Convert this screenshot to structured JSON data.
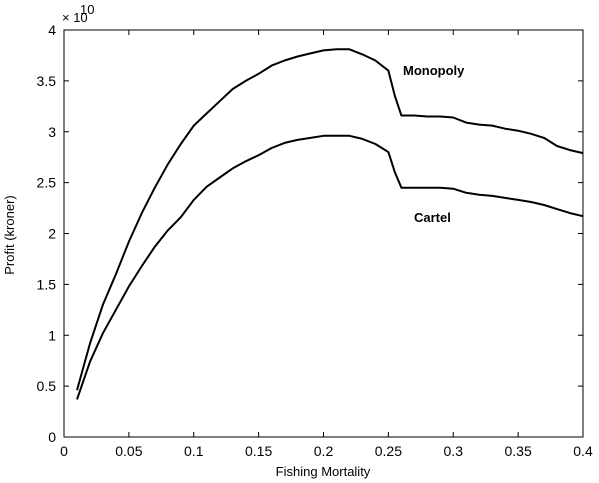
{
  "chart_data": {
    "type": "line",
    "title": "",
    "xlabel": "Fishing Mortality",
    "ylabel": "Profit (kroner)",
    "y_multiplier_label": "× 10",
    "y_multiplier_exponent": "10",
    "xlim": [
      0,
      0.4
    ],
    "ylim": [
      0,
      4
    ],
    "grid": false,
    "x_ticks": [
      0,
      0.05,
      0.1,
      0.15,
      0.2,
      0.25,
      0.3,
      0.35,
      0.4
    ],
    "x_tick_labels": [
      "0",
      "0.05",
      "0.1",
      "0.15",
      "0.2",
      "0.25",
      "0.3",
      "0.35",
      "0.4"
    ],
    "y_ticks": [
      0,
      0.5,
      1,
      1.5,
      2,
      2.5,
      3,
      3.5,
      4
    ],
    "y_tick_labels": [
      "0",
      "0.5",
      "1",
      "1.5",
      "2",
      "2.5",
      "3",
      "3.5",
      "4"
    ],
    "series": [
      {
        "name": "Monopoly",
        "color": "#000000",
        "x": [
          0.01,
          0.02,
          0.03,
          0.04,
          0.05,
          0.06,
          0.07,
          0.08,
          0.09,
          0.1,
          0.11,
          0.12,
          0.13,
          0.14,
          0.15,
          0.16,
          0.17,
          0.18,
          0.19,
          0.2,
          0.21,
          0.22,
          0.23,
          0.24,
          0.25,
          0.255,
          0.26,
          0.27,
          0.28,
          0.29,
          0.3,
          0.31,
          0.32,
          0.33,
          0.34,
          0.35,
          0.36,
          0.37,
          0.38,
          0.39,
          0.4
        ],
        "values": [
          0.46,
          0.92,
          1.3,
          1.6,
          1.92,
          2.2,
          2.45,
          2.68,
          2.88,
          3.06,
          3.18,
          3.3,
          3.42,
          3.5,
          3.57,
          3.65,
          3.7,
          3.74,
          3.77,
          3.8,
          3.81,
          3.81,
          3.76,
          3.7,
          3.6,
          3.35,
          3.16,
          3.16,
          3.15,
          3.15,
          3.14,
          3.09,
          3.07,
          3.06,
          3.03,
          3.01,
          2.98,
          2.94,
          2.86,
          2.82,
          2.79
        ]
      },
      {
        "name": "Cartel",
        "color": "#000000",
        "x": [
          0.01,
          0.02,
          0.03,
          0.04,
          0.05,
          0.06,
          0.07,
          0.08,
          0.09,
          0.1,
          0.11,
          0.12,
          0.13,
          0.14,
          0.15,
          0.16,
          0.17,
          0.18,
          0.19,
          0.2,
          0.21,
          0.22,
          0.23,
          0.24,
          0.25,
          0.255,
          0.26,
          0.27,
          0.28,
          0.29,
          0.3,
          0.31,
          0.32,
          0.33,
          0.34,
          0.35,
          0.36,
          0.37,
          0.38,
          0.39,
          0.4
        ],
        "values": [
          0.37,
          0.74,
          1.02,
          1.25,
          1.48,
          1.68,
          1.87,
          2.03,
          2.16,
          2.33,
          2.46,
          2.55,
          2.64,
          2.71,
          2.77,
          2.84,
          2.89,
          2.92,
          2.94,
          2.96,
          2.96,
          2.96,
          2.93,
          2.88,
          2.8,
          2.6,
          2.45,
          2.45,
          2.45,
          2.45,
          2.44,
          2.4,
          2.38,
          2.37,
          2.35,
          2.33,
          2.31,
          2.28,
          2.24,
          2.2,
          2.17
        ]
      }
    ]
  }
}
